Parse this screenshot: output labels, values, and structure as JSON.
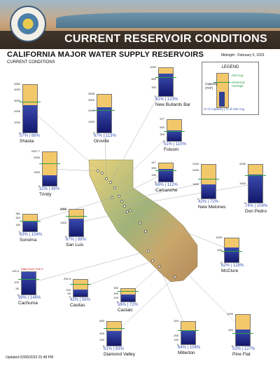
{
  "header": {
    "title": "CURRENT RESERVOIR CONDITIONS"
  },
  "page": {
    "title": "CALIFORNIA MAJOR WATER SUPPLY RESERVOIRS",
    "subtitle": "CURRENT CONDITIONS",
    "date": "Midnight - February 5, 2023",
    "footer": "Updated 02/06/2023 01:48 PM"
  },
  "legend": {
    "title": "LEGEND",
    "capacity_label": "Capacity (TAF)",
    "hist_label": "Hist Avg",
    "hist_avg_label": "Historical Average",
    "pct_label": "% of Capacity | % of Hist Avg"
  },
  "colors": {
    "storage": "#1f2a86",
    "capacity": "#f3c86b",
    "historical_average": "#2ea043",
    "stats_text": "#3a55b5"
  },
  "chart_data": {
    "type": "bar",
    "title": "CALIFORNIA MAJOR WATER SUPPLY RESERVOIRS",
    "categories": [
      "Shasta",
      "Oroville",
      "New Bullards Bar",
      "Folsom",
      "Trinity",
      "Camanche",
      "New Melones",
      "Don Pedro",
      "Sonoma",
      "San Luis",
      "McClure",
      "Cachuma",
      "Casitas",
      "Castaic",
      "Diamond Valley",
      "Millerton",
      "Pine Flat"
    ],
    "reservoirs": [
      {
        "id": "shasta",
        "name": "Shasta",
        "capacity": 4552,
        "ticks": [
          4552,
          4000,
          3000,
          2000,
          1000,
          0
        ],
        "pct_capacity": 57,
        "pct_hist_avg": 88,
        "stats": "57% | 88%"
      },
      {
        "id": "oroville",
        "name": "Oroville",
        "capacity": 3538,
        "ticks": [
          3538,
          3000,
          2000,
          1000,
          0
        ],
        "pct_capacity": 67,
        "pct_hist_avg": 113,
        "stats": "67% | 113%"
      },
      {
        "id": "newbullards",
        "name": "New Bullards Bar",
        "capacity": 1000,
        "ticks": [
          1000,
          600,
          300,
          0
        ],
        "pct_capacity": 81,
        "pct_hist_avg": 123,
        "stats": "81% | 123%"
      },
      {
        "id": "folsom",
        "name": "Folsom",
        "capacity": 977,
        "ticks": [
          977,
          600,
          300,
          0
        ],
        "pct_capacity": 51,
        "pct_hist_avg": 110,
        "stats": "51% | 110%"
      },
      {
        "id": "trinity",
        "name": "Trinity",
        "capacity": 2447.7,
        "ticks": [
          2447.7,
          2000,
          1000,
          0
        ],
        "pct_capacity": 32,
        "pct_hist_avg": 49,
        "stats": "32% | 49%"
      },
      {
        "id": "camanche",
        "name": "Camanche",
        "capacity": 417,
        "ticks": [
          417,
          300,
          150,
          0
        ],
        "pct_capacity": 68,
        "pct_hist_avg": 112,
        "stats": "68% | 112%"
      },
      {
        "id": "newmelones",
        "name": "New Melones",
        "capacity": 2420,
        "ticks": [
          2420,
          2000,
          1000,
          0
        ],
        "pct_capacity": 42,
        "pct_hist_avg": 72,
        "stats": "42% | 72%"
      },
      {
        "id": "donpedro",
        "name": "Don Pedro",
        "capacity": 2030,
        "ticks": [
          2030,
          1000,
          0
        ],
        "pct_capacity": 74,
        "pct_hist_avg": 104,
        "stats": "74% | 104%"
      },
      {
        "id": "sonoma",
        "name": "Sonoma",
        "capacity": 381,
        "ticks": [
          381,
          300,
          150,
          0
        ],
        "pct_capacity": 63,
        "pct_hist_avg": 104,
        "stats": "63% | 104%"
      },
      {
        "id": "sanluis",
        "name": "San Luis",
        "capacity": 2041,
        "ticks": [
          2041,
          2000,
          1000,
          0
        ],
        "pct_capacity": 67,
        "pct_hist_avg": 88,
        "stats": "67% | 88%"
      },
      {
        "id": "mcclure",
        "name": "McClure",
        "capacity": 1025,
        "ticks": [
          1025,
          500,
          0
        ],
        "pct_capacity": 62,
        "pct_hist_avg": 128,
        "stats": "62% | 128%"
      },
      {
        "id": "cachuma",
        "name": "Cachuma",
        "capacity": 193.3,
        "ticks": [
          193.3,
          100,
          50,
          0
        ],
        "pct_capacity": 99,
        "pct_hist_avg": 146,
        "stats": "99% | 146%",
        "note": "Data From: Feb 4"
      },
      {
        "id": "casitas",
        "name": "Casitas",
        "capacity": 254.5,
        "ticks": [
          254.5,
          100,
          50,
          0
        ],
        "pct_capacity": 42,
        "pct_hist_avg": 56,
        "stats": "42% | 56%"
      },
      {
        "id": "castaic",
        "name": "Castaic",
        "capacity": 320,
        "ticks": [
          320,
          200,
          100,
          0
        ],
        "pct_capacity": 56,
        "pct_hist_avg": 72,
        "stats": "56% | 72%"
      },
      {
        "id": "diamondvalley",
        "name": "Diamond Valley",
        "capacity": 800,
        "ticks": [
          800,
          400,
          200,
          0
        ],
        "pct_capacity": 61,
        "pct_hist_avg": 83,
        "stats": "61% | 83%"
      },
      {
        "id": "millerton",
        "name": "Millerton",
        "capacity": 520,
        "ticks": [
          520,
          200,
          100,
          0
        ],
        "pct_capacity": 64,
        "pct_hist_avg": 106,
        "stats": "64% | 106%"
      },
      {
        "id": "pineflat",
        "name": "Pine Flat",
        "capacity": 1000,
        "ticks": [
          1000,
          500,
          0
        ],
        "pct_capacity": 53,
        "pct_hist_avg": 127,
        "stats": "53% | 127%"
      }
    ]
  }
}
